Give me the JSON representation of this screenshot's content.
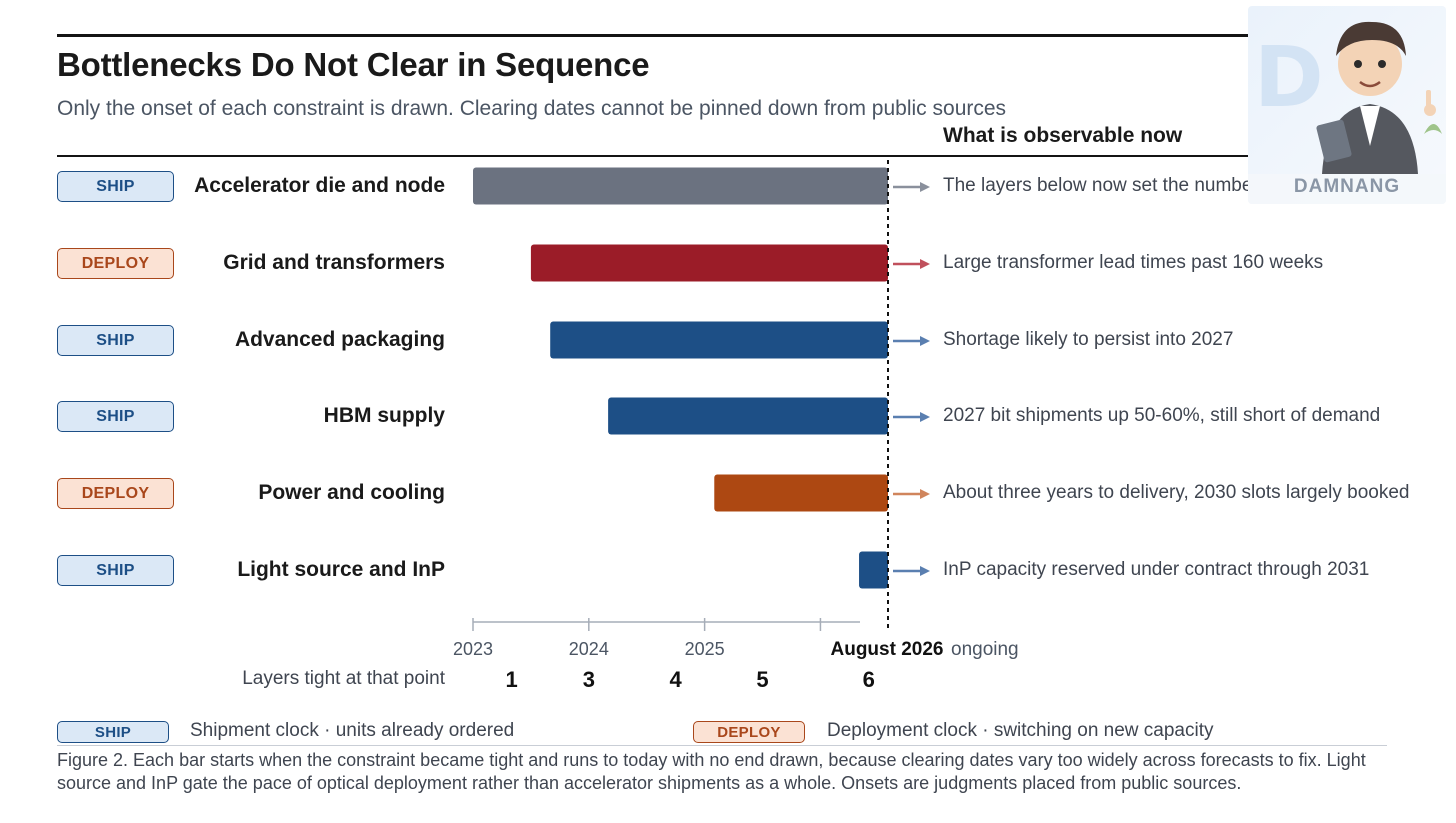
{
  "title": "Bottlenecks Do Not Clear in Sequence",
  "subtitle": "Only the onset of each constraint is drawn. Clearing dates cannot be pinned down from public sources",
  "observable_heading": "What is observable now",
  "rows": [
    {
      "badge": "SHIP",
      "badge_type": "ship",
      "label": "Accelerator die and node",
      "observable": "The layers below now set the number"
    },
    {
      "badge": "DEPLOY",
      "badge_type": "deploy",
      "label": "Grid and transformers",
      "observable": "Large transformer lead times past 160 weeks"
    },
    {
      "badge": "SHIP",
      "badge_type": "ship",
      "label": "Advanced packaging",
      "observable": "Shortage likely to persist into 2027"
    },
    {
      "badge": "SHIP",
      "badge_type": "ship",
      "label": "HBM supply",
      "observable": "2027 bit shipments up 50-60%, still short of demand"
    },
    {
      "badge": "DEPLOY",
      "badge_type": "deploy",
      "label": "Power and cooling",
      "observable": "About three years to delivery, 2030 slots largely booked"
    },
    {
      "badge": "SHIP",
      "badge_type": "ship",
      "label": "Light source and InP",
      "observable": "InP capacity reserved under contract through 2031"
    }
  ],
  "chart_data": {
    "type": "bar",
    "orientation": "horizontal",
    "title": "Bottlenecks Do Not Clear in Sequence",
    "x_range": [
      "2023-01",
      "2026-08"
    ],
    "x_ticks": [
      {
        "value": "2023-01",
        "label": "2023"
      },
      {
        "value": "2024-01",
        "label": "2024"
      },
      {
        "value": "2025-01",
        "label": "2025"
      },
      {
        "value": "2026-01",
        "label": ""
      }
    ],
    "today": {
      "value": "2026-08",
      "label": "August 2026",
      "suffix": "ongoing"
    },
    "categories": [
      "Accelerator die and node",
      "Grid and transformers",
      "Advanced packaging",
      "HBM supply",
      "Power and cooling",
      "Light source and InP"
    ],
    "series": [
      {
        "onsets": [
          "2023-01",
          "2023-07",
          "2023-09",
          "2024-03",
          "2025-02",
          "2026-05"
        ],
        "end": "ongoing",
        "colors": [
          "#6b7280",
          "#9b1c28",
          "#1d4f86",
          "#1d4f86",
          "#ad4812",
          "#1d4f86"
        ]
      }
    ],
    "layers_tight": {
      "label": "Layers tight at that point",
      "points": [
        {
          "at": "2023-05",
          "count": "1"
        },
        {
          "at": "2024-01",
          "count": "3"
        },
        {
          "at": "2024-10",
          "count": "4"
        },
        {
          "at": "2025-07",
          "count": "5"
        },
        {
          "at": "2026-06",
          "count": "6"
        }
      ]
    },
    "arrow_colors": [
      "#8a909c",
      "#c0505c",
      "#5a7fb0",
      "#5a7fb0",
      "#d0855c",
      "#5a7fb0"
    ],
    "grid": false
  },
  "legend": [
    {
      "badge": "SHIP",
      "type": "ship",
      "text": "Shipment clock · units already ordered"
    },
    {
      "badge": "DEPLOY",
      "type": "deploy",
      "text": "Deployment clock · switching on new capacity"
    }
  ],
  "caption": "Figure 2. Each bar starts when the constraint became tight and runs to today with no end drawn, because clearing dates vary too widely across forecasts to fix. Light source and InP gate the pace of optical deployment rather than accelerator shipments as a whole. Onsets are judgments placed from public sources.",
  "watermark": {
    "text": "DAMNANG",
    "icon": "mascot-logo-icon"
  }
}
